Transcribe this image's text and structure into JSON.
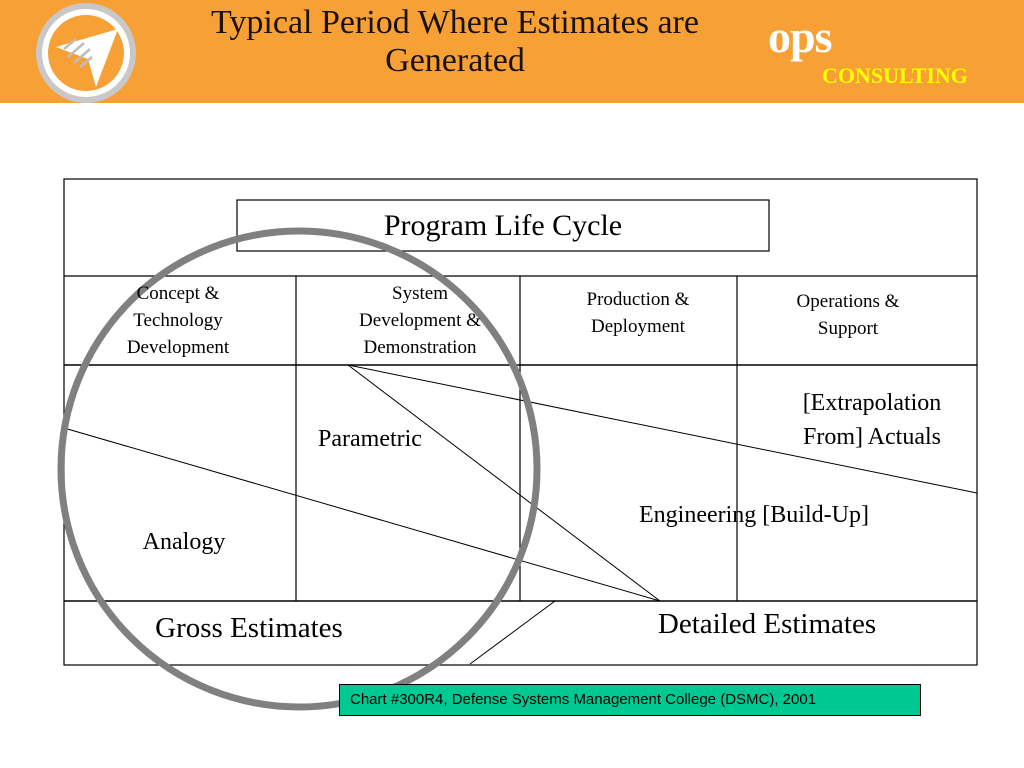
{
  "header": {
    "title_line1": "Typical Period Where Estimates are",
    "title_line2": "Generated",
    "brand_ops": "ops",
    "brand_consulting": "CONSULTING"
  },
  "diagram": {
    "life_cycle_label": "Program Life Cycle",
    "phases": [
      {
        "line1": "Concept &",
        "line2": "Technology",
        "line3": "Development"
      },
      {
        "line1": "System",
        "line2": "Development &",
        "line3": "Demonstration"
      },
      {
        "line1": "Production &",
        "line2": "Deployment"
      },
      {
        "line1": "Operations &",
        "line2": "Support"
      }
    ],
    "methods": {
      "extrapolation_line1": "[Extrapolation",
      "extrapolation_line2": "From] Actuals",
      "parametric": "Parametric",
      "engineering": "Engineering [Build-Up]",
      "analogy": "Analogy"
    },
    "estimates": {
      "gross": "Gross Estimates",
      "detailed": "Detailed Estimates"
    }
  },
  "source": "Chart #300R4, Defense Systems Management College (DSMC), 2001",
  "colors": {
    "header_bg": "#f7a035",
    "circle": "#808080",
    "source_bg": "#00c892",
    "consulting": "#ffff00"
  }
}
